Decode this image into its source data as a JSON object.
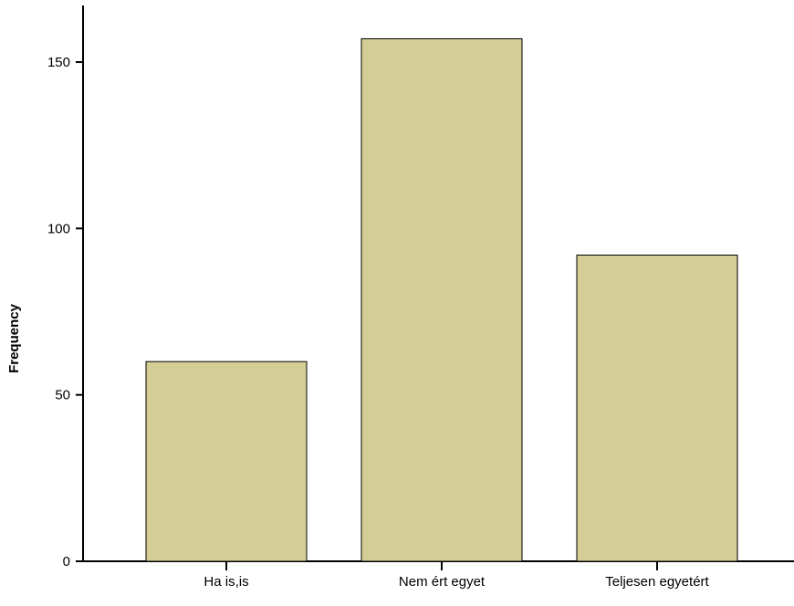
{
  "chart_data": {
    "type": "bar",
    "title": "",
    "xlabel": "",
    "ylabel": "Frequency",
    "categories": [
      "Ha is,is",
      "Nem ért egyet",
      "Teljesen egyetért"
    ],
    "values": [
      60,
      157,
      92
    ],
    "ylim": [
      0,
      167
    ],
    "yticks": [
      0,
      50,
      100,
      150
    ],
    "grid": false,
    "legend": "none",
    "colors": {
      "bar_fill": "#d4cd96",
      "bar_stroke": "#000000",
      "axis": "#000000",
      "background": "#ffffff"
    }
  }
}
